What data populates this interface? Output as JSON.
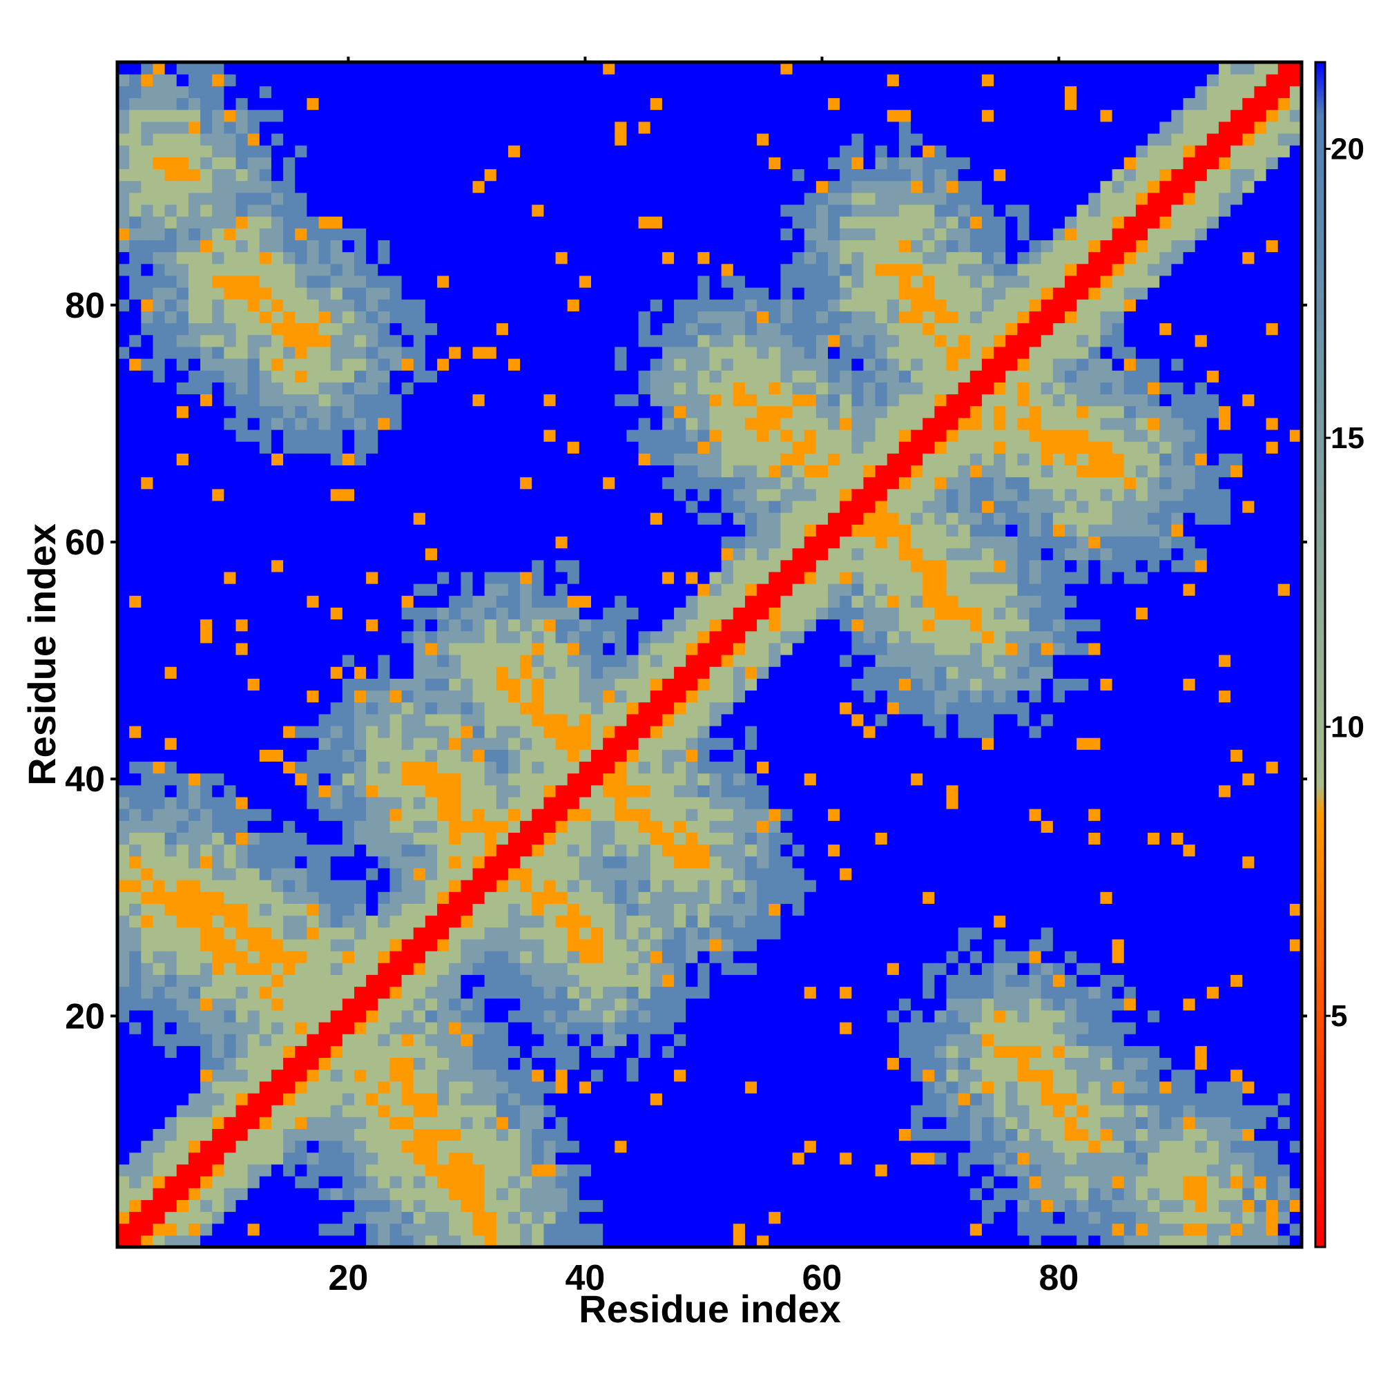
{
  "chart_data": {
    "type": "heatmap",
    "title": "",
    "xlabel": "Residue index",
    "ylabel": "Residue index",
    "n_residues": 100,
    "xlim": [
      1,
      100
    ],
    "ylim": [
      1,
      100
    ],
    "x_ticks": [
      20,
      40,
      60,
      80
    ],
    "y_ticks": [
      20,
      40,
      60,
      80
    ],
    "colorbar": {
      "ticks": [
        5,
        10,
        15,
        20
      ],
      "range": [
        1,
        21.5
      ],
      "stops": [
        {
          "value": 1,
          "color": "#ff0000"
        },
        {
          "value": 8.5,
          "color": "#ff9900"
        },
        {
          "value": 9.0,
          "color": "#a8bc8c"
        },
        {
          "value": 20.6,
          "color": "#4f7fb6"
        },
        {
          "value": 21.5,
          "color": "#0000ff"
        }
      ]
    },
    "colors": {
      "red": "#ff0000",
      "orange": "#ff9900",
      "sage": "#a8bc8c",
      "steel": "#5b86b4",
      "blue": "#0000ff"
    },
    "cutoff": 21,
    "contacts": [
      {
        "from": [
          2,
          32
        ],
        "to": [
          14,
          22
        ],
        "value": 6.2
      },
      {
        "from": [
          11,
          82
        ],
        "to": [
          17,
          76
        ],
        "value": 6.2
      },
      {
        "from": [
          24,
          16
        ],
        "to": [
          31,
          6
        ],
        "value": 6.2
      },
      {
        "from": [
          26,
          41
        ],
        "to": [
          32,
          35
        ],
        "value": 6.2
      },
      {
        "from": [
          34,
          49
        ],
        "to": [
          40,
          42
        ],
        "value": 6.2
      },
      {
        "from": [
          35,
          32
        ],
        "to": [
          41,
          25
        ],
        "value": 6.2
      },
      {
        "from": [
          43,
          39
        ],
        "to": [
          49,
          33
        ],
        "value": 6.2
      },
      {
        "from": [
          54,
          71
        ],
        "to": [
          62,
          64
        ],
        "value": 6.2
      },
      {
        "from": [
          66,
          61
        ],
        "to": [
          73,
          53
        ],
        "value": 6.2
      },
      {
        "from": [
          66,
          85
        ],
        "to": [
          72,
          76
        ],
        "value": 6.2
      },
      {
        "from": [
          75,
          72
        ],
        "to": [
          83,
          66
        ],
        "value": 6.2
      },
      {
        "from": [
          77,
          17
        ],
        "to": [
          82,
          10
        ],
        "value": 6.2
      },
      {
        "from": [
          91,
          6
        ],
        "to": [
          92,
          4
        ],
        "value": 6.2
      }
    ]
  }
}
